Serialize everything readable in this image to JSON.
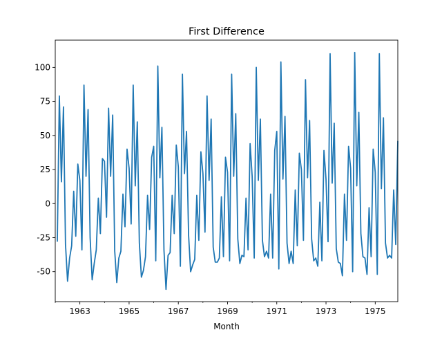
{
  "chart_data": {
    "type": "line",
    "title": "First Difference",
    "xlabel": "Month",
    "ylabel": "",
    "xlim": [
      1962.0,
      1975.917
    ],
    "ylim": [
      -72,
      120
    ],
    "x_ticks": [
      1963,
      1965,
      1967,
      1969,
      1971,
      1973,
      1975
    ],
    "y_ticks": [
      -50,
      -25,
      0,
      25,
      50,
      75,
      100
    ],
    "grid": false,
    "line_color": "#1f77b4",
    "series": [
      {
        "x_start": "1962-02",
        "interval": "month",
        "values": [
          -28,
          79,
          16,
          71,
          -30,
          -57,
          -40,
          -31,
          9,
          -24,
          29,
          17,
          -34,
          87,
          20,
          69,
          -25,
          -56,
          -44,
          -34,
          4,
          -22,
          33,
          31,
          -10,
          70,
          20,
          65,
          -35,
          -58,
          -40,
          -35,
          7,
          -17,
          40,
          26,
          -15,
          87,
          13,
          60,
          -29,
          -54,
          -49,
          -39,
          6,
          -19,
          34,
          42,
          -42,
          101,
          19,
          56,
          -34,
          -63,
          -38,
          -36,
          6,
          -22,
          43,
          27,
          -46,
          95,
          22,
          53,
          -23,
          -50,
          -45,
          -41,
          6,
          -27,
          38,
          22,
          -21,
          79,
          17,
          62,
          -32,
          -43,
          -43,
          -40,
          5,
          -39,
          34,
          23,
          -42,
          95,
          20,
          66,
          -26,
          -44,
          -38,
          -39,
          4,
          -34,
          44,
          20,
          -40,
          100,
          17,
          62,
          -27,
          -39,
          -35,
          -40,
          7,
          -40,
          39,
          53,
          -48,
          104,
          18,
          64,
          -29,
          -44,
          -35,
          -44,
          10,
          -31,
          37,
          25,
          -27,
          91,
          19,
          61,
          -26,
          -42,
          -40,
          -46,
          1,
          -42,
          39,
          18,
          -28,
          110,
          15,
          59,
          -33,
          -43,
          -44,
          -53,
          7,
          -27,
          42,
          26,
          -50,
          111,
          13,
          67,
          -22,
          -39,
          -40,
          -52,
          -3,
          -39,
          40,
          23,
          -52,
          110,
          11,
          63,
          -29,
          -40,
          -38,
          -40,
          10,
          -30,
          46
        ]
      }
    ]
  }
}
